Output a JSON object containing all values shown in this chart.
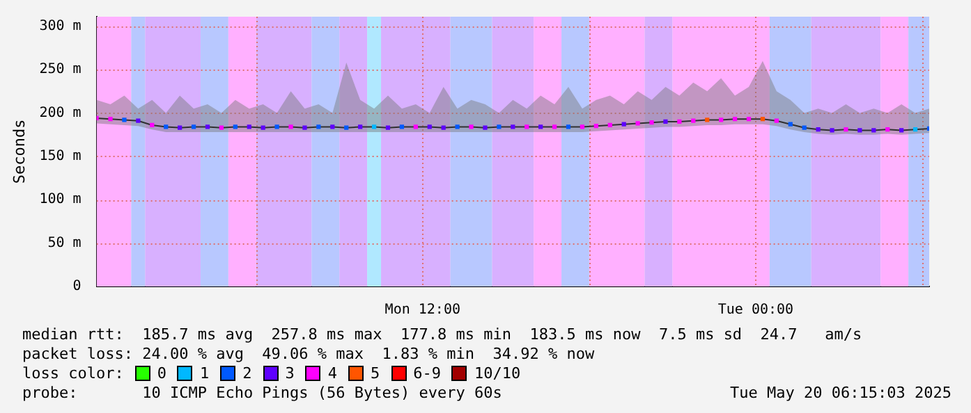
{
  "chart_data": {
    "type": "line",
    "ylabel": "Seconds",
    "legend": "bottom",
    "legend_title": "loss color:",
    "grid": true,
    "marker": "none",
    "x": [
      "2025-05-19T00:15",
      "2025-05-19T00:45",
      "2025-05-19T01:15",
      "2025-05-19T01:45",
      "2025-05-19T02:15",
      "2025-05-19T02:45",
      "2025-05-19T03:15",
      "2025-05-19T03:45",
      "2025-05-19T04:15",
      "2025-05-19T04:45",
      "2025-05-19T05:15",
      "2025-05-19T05:45",
      "2025-05-19T06:15",
      "2025-05-19T06:45",
      "2025-05-19T07:15",
      "2025-05-19T07:45",
      "2025-05-19T08:15",
      "2025-05-19T08:45",
      "2025-05-19T09:15",
      "2025-05-19T09:45",
      "2025-05-19T10:15",
      "2025-05-19T10:45",
      "2025-05-19T11:15",
      "2025-05-19T11:45",
      "2025-05-19T12:15",
      "2025-05-19T12:45",
      "2025-05-19T13:15",
      "2025-05-19T13:45",
      "2025-05-19T14:15",
      "2025-05-19T14:45",
      "2025-05-19T15:15",
      "2025-05-19T15:45",
      "2025-05-19T16:15",
      "2025-05-19T16:45",
      "2025-05-19T17:15",
      "2025-05-19T17:45",
      "2025-05-19T18:15",
      "2025-05-19T18:45",
      "2025-05-19T19:15",
      "2025-05-19T19:45",
      "2025-05-19T20:15",
      "2025-05-19T20:45",
      "2025-05-19T21:15",
      "2025-05-19T21:45",
      "2025-05-19T22:15",
      "2025-05-19T22:45",
      "2025-05-19T23:15",
      "2025-05-19T23:45",
      "2025-05-20T00:15",
      "2025-05-20T00:45",
      "2025-05-20T01:15",
      "2025-05-20T01:45",
      "2025-05-20T02:15",
      "2025-05-20T02:45",
      "2025-05-20T03:15",
      "2025-05-20T03:45",
      "2025-05-20T04:15",
      "2025-05-20T04:45",
      "2025-05-20T05:15",
      "2025-05-20T05:45",
      "2025-05-20T06:15"
    ],
    "xlim": [
      "2025-05-19T00:15",
      "2025-05-20T06:15"
    ],
    "xticks": [
      {
        "value": "2025-05-19T06:00",
        "label": null
      },
      {
        "value": "2025-05-19T12:00",
        "label": "Mon 12:00"
      },
      {
        "value": "2025-05-19T18:00",
        "label": null
      },
      {
        "value": "2025-05-20T00:00",
        "label": "Tue 00:00"
      },
      {
        "value": "2025-05-20T06:00",
        "label": null
      }
    ],
    "ylim": [
      0,
      311
    ],
    "yticks": [
      0,
      {
        "value": 50,
        "label": "50 m"
      },
      {
        "value": 100,
        "label": "100 m"
      },
      {
        "value": 150,
        "label": "150 m"
      },
      {
        "value": 200,
        "label": "200 m"
      },
      {
        "value": 250,
        "label": "250 m"
      },
      {
        "value": 300,
        "label": "300 m"
      }
    ],
    "series": [
      {
        "type": "line",
        "color": "#303030",
        "values": [
          194,
          193,
          192,
          191,
          186,
          184,
          183,
          184,
          184,
          183,
          184,
          184,
          183,
          184,
          184,
          183,
          184,
          184,
          183,
          184,
          184,
          183,
          184,
          184,
          184,
          183,
          184,
          184,
          183,
          184,
          184,
          184,
          184,
          184,
          184,
          184,
          185,
          186,
          187,
          188,
          189,
          190,
          190,
          191,
          192,
          192,
          193,
          193,
          193,
          191,
          187,
          183,
          181,
          180,
          181,
          180,
          180,
          181,
          180,
          181,
          182
        ],
        "lower": [
          188,
          187,
          186,
          185,
          181,
          178,
          178,
          178,
          178,
          178,
          178,
          178,
          178,
          178,
          178,
          178,
          178,
          178,
          178,
          178,
          178,
          178,
          178,
          178,
          178,
          178,
          178,
          178,
          178,
          178,
          178,
          178,
          178,
          178,
          178,
          178,
          179,
          180,
          181,
          182,
          183,
          184,
          184,
          185,
          186,
          186,
          187,
          187,
          187,
          185,
          181,
          178,
          176,
          175,
          176,
          175,
          175,
          176,
          175,
          176,
          177
        ],
        "upper": [
          215,
          210,
          220,
          205,
          215,
          200,
          220,
          205,
          210,
          200,
          215,
          205,
          210,
          200,
          225,
          205,
          210,
          200,
          258,
          215,
          205,
          220,
          205,
          210,
          200,
          230,
          205,
          215,
          210,
          200,
          215,
          205,
          220,
          210,
          230,
          205,
          215,
          220,
          210,
          225,
          215,
          230,
          220,
          235,
          225,
          240,
          220,
          230,
          260,
          225,
          215,
          200,
          205,
          200,
          210,
          200,
          205,
          200,
          210,
          200,
          205
        ]
      },
      {
        "type": "scatter",
        "marker": "square",
        "name": "0",
        "color": "#26ff00",
        "values": [
          null,
          null,
          null,
          null,
          null,
          null,
          null,
          null,
          null,
          null,
          null,
          null,
          null,
          null,
          null,
          null,
          null,
          null,
          null,
          null,
          null,
          null,
          null,
          null,
          null,
          null,
          null,
          null,
          null,
          null,
          null,
          null,
          null,
          null,
          null,
          null,
          null,
          null,
          null,
          null,
          null,
          null,
          null,
          null,
          null,
          null,
          null,
          null,
          null,
          null,
          null,
          null,
          null,
          null,
          null,
          null,
          null,
          null,
          null,
          null,
          null
        ]
      },
      {
        "type": "scatter",
        "marker": "square",
        "name": "1",
        "color": "#00b8ff",
        "values": [
          null,
          null,
          null,
          null,
          null,
          null,
          null,
          null,
          null,
          null,
          null,
          null,
          null,
          null,
          null,
          null,
          null,
          null,
          null,
          null,
          184,
          null,
          null,
          null,
          null,
          null,
          null,
          null,
          null,
          null,
          null,
          null,
          null,
          null,
          null,
          null,
          null,
          null,
          null,
          null,
          null,
          null,
          null,
          null,
          null,
          null,
          null,
          null,
          null,
          null,
          null,
          null,
          null,
          null,
          null,
          null,
          null,
          null,
          null,
          181,
          null
        ]
      },
      {
        "type": "scatter",
        "marker": "square",
        "name": "2",
        "color": "#0059ff",
        "values": [
          null,
          null,
          192,
          null,
          null,
          184,
          null,
          184,
          null,
          null,
          184,
          null,
          null,
          184,
          null,
          null,
          184,
          null,
          183,
          null,
          null,
          null,
          184,
          null,
          null,
          null,
          184,
          null,
          null,
          184,
          null,
          null,
          null,
          null,
          184,
          null,
          null,
          null,
          null,
          null,
          null,
          null,
          null,
          null,
          null,
          null,
          null,
          null,
          null,
          null,
          187,
          183,
          null,
          null,
          null,
          null,
          null,
          null,
          null,
          null,
          182
        ]
      },
      {
        "type": "scatter",
        "marker": "square",
        "name": "3",
        "color": "#5e00ff",
        "values": [
          null,
          null,
          null,
          191,
          null,
          null,
          183,
          null,
          184,
          null,
          null,
          184,
          183,
          null,
          null,
          183,
          null,
          184,
          null,
          184,
          null,
          183,
          null,
          null,
          184,
          183,
          null,
          null,
          183,
          null,
          184,
          null,
          184,
          null,
          null,
          null,
          null,
          null,
          187,
          null,
          null,
          190,
          null,
          null,
          null,
          null,
          null,
          null,
          null,
          null,
          null,
          null,
          181,
          180,
          null,
          180,
          180,
          null,
          180,
          null,
          null
        ]
      },
      {
        "type": "scatter",
        "marker": "square",
        "name": "4",
        "color": "#ff00fe",
        "values": [
          194,
          193,
          null,
          null,
          186,
          null,
          null,
          null,
          null,
          183,
          null,
          null,
          null,
          null,
          184,
          null,
          null,
          null,
          null,
          null,
          null,
          null,
          null,
          184,
          null,
          null,
          null,
          184,
          null,
          null,
          null,
          184,
          null,
          184,
          null,
          184,
          185,
          186,
          null,
          188,
          189,
          null,
          190,
          191,
          null,
          192,
          193,
          193,
          null,
          191,
          null,
          null,
          null,
          null,
          181,
          null,
          null,
          181,
          null,
          null,
          null
        ]
      },
      {
        "type": "scatter",
        "marker": "square",
        "name": "5",
        "color": "#ff5500",
        "values": [
          null,
          null,
          null,
          null,
          null,
          null,
          null,
          null,
          null,
          null,
          null,
          null,
          null,
          null,
          null,
          null,
          null,
          null,
          null,
          null,
          null,
          null,
          null,
          null,
          null,
          null,
          null,
          null,
          null,
          null,
          null,
          null,
          null,
          null,
          null,
          null,
          null,
          null,
          null,
          null,
          null,
          null,
          null,
          null,
          192,
          null,
          null,
          null,
          193,
          null,
          null,
          null,
          null,
          null,
          null,
          null,
          null,
          null,
          null,
          null,
          null
        ]
      },
      {
        "type": "scatter",
        "marker": "square",
        "name": "6-9",
        "color": "#ff0000",
        "values": [
          null,
          null,
          null,
          null,
          null,
          null,
          null,
          null,
          null,
          null,
          null,
          null,
          null,
          null,
          null,
          null,
          null,
          null,
          null,
          null,
          null,
          null,
          null,
          null,
          null,
          null,
          null,
          null,
          null,
          null,
          null,
          null,
          null,
          null,
          null,
          null,
          null,
          null,
          null,
          null,
          null,
          null,
          null,
          null,
          null,
          null,
          null,
          null,
          null,
          null,
          null,
          null,
          null,
          null,
          null,
          null,
          null,
          null,
          null,
          null,
          null
        ]
      },
      {
        "type": "scatter",
        "marker": "square",
        "name": "10/10",
        "color": "#a10000",
        "values": [
          null,
          null,
          null,
          null,
          null,
          null,
          null,
          null,
          null,
          null,
          null,
          null,
          null,
          null,
          null,
          null,
          null,
          null,
          null,
          null,
          null,
          null,
          null,
          null,
          null,
          null,
          null,
          null,
          null,
          null,
          null,
          null,
          null,
          null,
          null,
          null,
          null,
          null,
          null,
          null,
          null,
          null,
          null,
          null,
          null,
          null,
          null,
          null,
          null,
          null,
          null,
          null,
          null,
          null,
          null,
          null,
          null,
          null,
          null,
          null,
          null
        ]
      }
    ],
    "bands": [
      {
        "axis": "x",
        "from": "2025-05-19T00:15",
        "to": "2025-05-19T01:30",
        "color": "#ffb0ff"
      },
      {
        "axis": "x",
        "from": "2025-05-19T01:30",
        "to": "2025-05-19T02:00",
        "color": "#b8c8ff"
      },
      {
        "axis": "x",
        "from": "2025-05-19T02:00",
        "to": "2025-05-19T04:00",
        "color": "#d8b0ff"
      },
      {
        "axis": "x",
        "from": "2025-05-19T04:00",
        "to": "2025-05-19T05:00",
        "color": "#b8c8ff"
      },
      {
        "axis": "x",
        "from": "2025-05-19T05:00",
        "to": "2025-05-19T06:00",
        "color": "#ffb0ff"
      },
      {
        "axis": "x",
        "from": "2025-05-19T06:00",
        "to": "2025-05-19T08:00",
        "color": "#d8b0ff"
      },
      {
        "axis": "x",
        "from": "2025-05-19T08:00",
        "to": "2025-05-19T09:00",
        "color": "#b8c8ff"
      },
      {
        "axis": "x",
        "from": "2025-05-19T09:00",
        "to": "2025-05-19T10:00",
        "color": "#d8b0ff"
      },
      {
        "axis": "x",
        "from": "2025-05-19T10:00",
        "to": "2025-05-19T10:30",
        "color": "#b0e8ff"
      },
      {
        "axis": "x",
        "from": "2025-05-19T10:30",
        "to": "2025-05-19T13:00",
        "color": "#d8b0ff"
      },
      {
        "axis": "x",
        "from": "2025-05-19T13:00",
        "to": "2025-05-19T14:30",
        "color": "#b8c8ff"
      },
      {
        "axis": "x",
        "from": "2025-05-19T14:30",
        "to": "2025-05-19T16:00",
        "color": "#d8b0ff"
      },
      {
        "axis": "x",
        "from": "2025-05-19T16:00",
        "to": "2025-05-19T17:00",
        "color": "#ffb0ff"
      },
      {
        "axis": "x",
        "from": "2025-05-19T17:00",
        "to": "2025-05-19T18:00",
        "color": "#b8c8ff"
      },
      {
        "axis": "x",
        "from": "2025-05-19T18:00",
        "to": "2025-05-19T20:00",
        "color": "#ffb0ff"
      },
      {
        "axis": "x",
        "from": "2025-05-19T20:00",
        "to": "2025-05-19T21:00",
        "color": "#d8b0ff"
      },
      {
        "axis": "x",
        "from": "2025-05-19T21:00",
        "to": "2025-05-20T00:30",
        "color": "#ffb0ff"
      },
      {
        "axis": "x",
        "from": "2025-05-20T00:30",
        "to": "2025-05-20T02:00",
        "color": "#b8c8ff"
      },
      {
        "axis": "x",
        "from": "2025-05-20T02:00",
        "to": "2025-05-20T04:30",
        "color": "#d8b0ff"
      },
      {
        "axis": "x",
        "from": "2025-05-20T04:30",
        "to": "2025-05-20T05:30",
        "color": "#ffb0ff"
      },
      {
        "axis": "x",
        "from": "2025-05-20T05:30",
        "to": "2025-05-20T06:15",
        "color": "#b8c8ff"
      }
    ],
    "annotations": [
      "median rtt:  185.7 ms avg  257.8 ms max  177.8 ms min  183.5 ms now  7.5 ms sd  24.7   am/s",
      "packet loss: 24.00 % avg  49.06 % max  1.83 % min  34.92 % now",
      "probe:       10 ICMP Echo Pings (56 Bytes) every 60s",
      "Tue May 20 06:15:03 2025"
    ]
  }
}
